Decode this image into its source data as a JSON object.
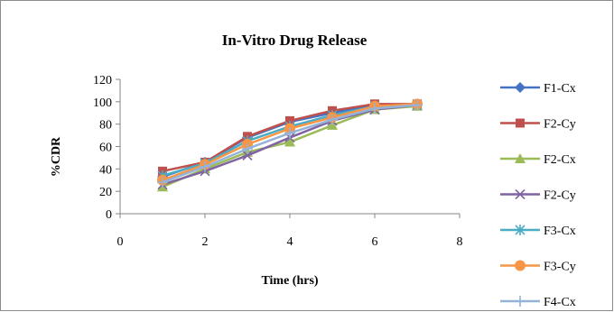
{
  "chart_data": {
    "type": "line",
    "title": "In-Vitro Drug Release",
    "xlabel": "Time (hrs)",
    "ylabel": "%CDR",
    "xlim": [
      0,
      8
    ],
    "ylim": [
      0,
      120
    ],
    "x_ticks": [
      0,
      2,
      4,
      6,
      8
    ],
    "y_ticks": [
      0,
      20,
      40,
      60,
      80,
      100,
      120
    ],
    "grid": "none",
    "legend_position": "right",
    "x": [
      1,
      2,
      3,
      4,
      5,
      6,
      7
    ],
    "series": [
      {
        "name": "F1-Cx",
        "color": "#4472C4",
        "marker": "diamond",
        "values": [
          33,
          46,
          68,
          82,
          90,
          97,
          97
        ]
      },
      {
        "name": "F2-Cy",
        "color": "#C0504D",
        "marker": "square",
        "values": [
          38,
          46,
          69,
          83,
          92,
          98,
          98
        ]
      },
      {
        "name": "F2-Cx",
        "color": "#9BBB59",
        "marker": "triangle",
        "values": [
          24,
          40,
          55,
          64,
          79,
          93,
          96
        ]
      },
      {
        "name": "F2-Cy",
        "color": "#8064A2",
        "marker": "x",
        "values": [
          26,
          38,
          52,
          68,
          83,
          93,
          97
        ]
      },
      {
        "name": "F3-Cx",
        "color": "#4BACC6",
        "marker": "star",
        "values": [
          34,
          45,
          65,
          78,
          88,
          96,
          97
        ]
      },
      {
        "name": "F3-Cy",
        "color": "#F79646",
        "marker": "circle",
        "values": [
          30,
          44,
          62,
          76,
          86,
          96,
          98
        ]
      },
      {
        "name": "F4-Cx",
        "color": "#95B3D7",
        "marker": "plus",
        "values": [
          28,
          42,
          58,
          72,
          84,
          94,
          97
        ]
      }
    ]
  }
}
